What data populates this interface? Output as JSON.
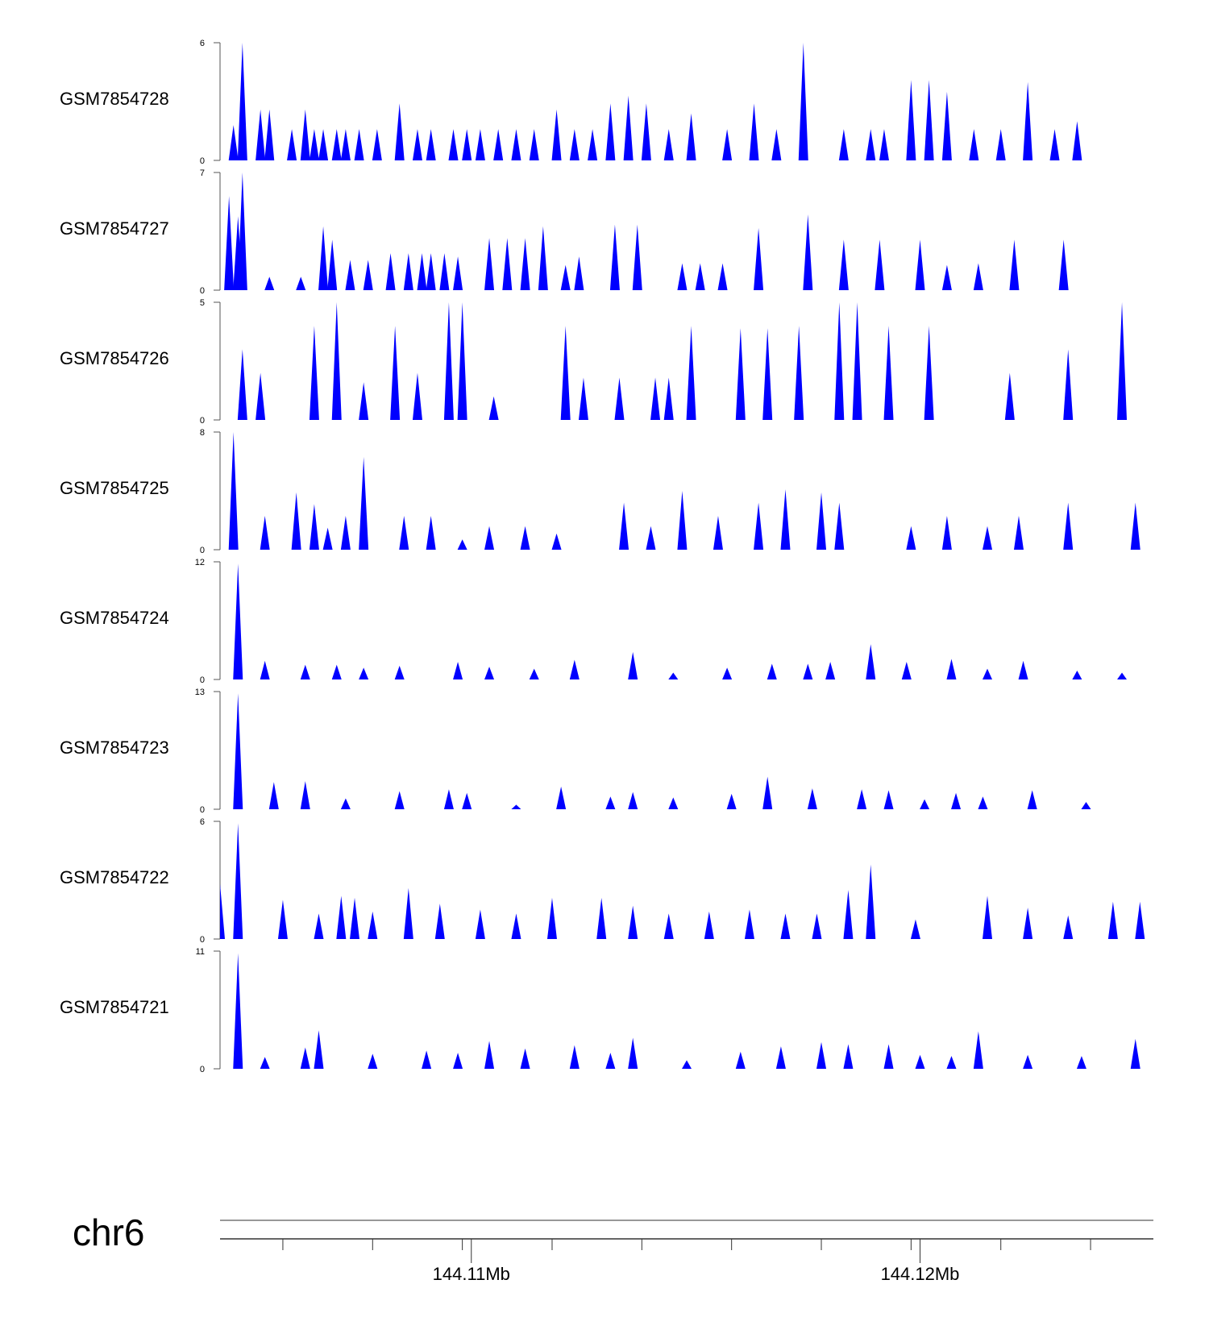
{
  "chart_data": {
    "type": "area",
    "color": "#0000ff",
    "x_units": "Mb",
    "xlim": [
      144.1044,
      144.1252
    ],
    "chromosome": "chr6",
    "axis": {
      "major_ticks": [
        144.11,
        144.12
      ],
      "major_labels": [
        "144.11Mb",
        "144.12Mb"
      ],
      "minor_ticks": [
        144.1058,
        144.1078,
        144.1098,
        144.1118,
        144.1138,
        144.1158,
        144.1178,
        144.1198,
        144.1218,
        144.1238
      ]
    },
    "tracks": [
      {
        "name": "GSM7854728",
        "ymax": 6,
        "ymax_label": "6",
        "ymin_label": "0",
        "peaks": [
          [
            144.1047,
            1.8
          ],
          [
            144.1049,
            6.0
          ],
          [
            144.1053,
            2.6
          ],
          [
            144.1055,
            2.6
          ],
          [
            144.106,
            1.6
          ],
          [
            144.1063,
            2.6
          ],
          [
            144.1065,
            1.6
          ],
          [
            144.1067,
            1.6
          ],
          [
            144.107,
            1.6
          ],
          [
            144.1072,
            1.6
          ],
          [
            144.1075,
            1.6
          ],
          [
            144.1079,
            1.6
          ],
          [
            144.1084,
            2.9
          ],
          [
            144.1088,
            1.6
          ],
          [
            144.1091,
            1.6
          ],
          [
            144.1096,
            1.6
          ],
          [
            144.1099,
            1.6
          ],
          [
            144.1102,
            1.6
          ],
          [
            144.1106,
            1.6
          ],
          [
            144.111,
            1.6
          ],
          [
            144.1114,
            1.6
          ],
          [
            144.1119,
            2.6
          ],
          [
            144.1123,
            1.6
          ],
          [
            144.1127,
            1.6
          ],
          [
            144.1131,
            2.9
          ],
          [
            144.1135,
            3.3
          ],
          [
            144.1139,
            2.9
          ],
          [
            144.1144,
            1.6
          ],
          [
            144.1149,
            2.4
          ],
          [
            144.1157,
            1.6
          ],
          [
            144.1163,
            2.9
          ],
          [
            144.1168,
            1.6
          ],
          [
            144.1174,
            6.0
          ],
          [
            144.1183,
            1.6
          ],
          [
            144.1189,
            1.6
          ],
          [
            144.1192,
            1.6
          ],
          [
            144.1198,
            4.1
          ],
          [
            144.1202,
            4.1
          ],
          [
            144.1206,
            3.5
          ],
          [
            144.1212,
            1.6
          ],
          [
            144.1218,
            1.6
          ],
          [
            144.1224,
            4.0
          ],
          [
            144.123,
            1.6
          ],
          [
            144.1235,
            2.0
          ]
        ]
      },
      {
        "name": "GSM7854727",
        "ymax": 7,
        "ymax_label": "7",
        "ymin_label": "0",
        "peaks": [
          [
            144.1046,
            5.6
          ],
          [
            144.1048,
            4.4
          ],
          [
            144.1049,
            7.0
          ],
          [
            144.1055,
            0.8
          ],
          [
            144.1062,
            0.8
          ],
          [
            144.1067,
            3.8
          ],
          [
            144.1069,
            3.0
          ],
          [
            144.1073,
            1.8
          ],
          [
            144.1077,
            1.8
          ],
          [
            144.1082,
            2.2
          ],
          [
            144.1086,
            2.2
          ],
          [
            144.1089,
            2.2
          ],
          [
            144.1091,
            2.2
          ],
          [
            144.1094,
            2.2
          ],
          [
            144.1097,
            2.0
          ],
          [
            144.1104,
            3.1
          ],
          [
            144.1108,
            3.1
          ],
          [
            144.1112,
            3.1
          ],
          [
            144.1116,
            3.8
          ],
          [
            144.1121,
            1.5
          ],
          [
            144.1124,
            2.0
          ],
          [
            144.1132,
            3.9
          ],
          [
            144.1137,
            3.9
          ],
          [
            144.1147,
            1.6
          ],
          [
            144.1151,
            1.6
          ],
          [
            144.1156,
            1.6
          ],
          [
            144.1164,
            3.7
          ],
          [
            144.1175,
            4.5
          ],
          [
            144.1183,
            3.0
          ],
          [
            144.1191,
            3.0
          ],
          [
            144.12,
            3.0
          ],
          [
            144.1206,
            1.5
          ],
          [
            144.1213,
            1.6
          ],
          [
            144.1221,
            3.0
          ],
          [
            144.1232,
            3.0
          ]
        ]
      },
      {
        "name": "GSM7854726",
        "ymax": 5,
        "ymax_label": "5",
        "ymin_label": "0",
        "peaks": [
          [
            144.1049,
            3.0
          ],
          [
            144.1053,
            2.0
          ],
          [
            144.1065,
            4.0
          ],
          [
            144.107,
            5.0
          ],
          [
            144.1076,
            1.6
          ],
          [
            144.1083,
            4.0
          ],
          [
            144.1088,
            2.0
          ],
          [
            144.1095,
            5.0
          ],
          [
            144.1098,
            5.0
          ],
          [
            144.1105,
            1.0
          ],
          [
            144.1121,
            4.0
          ],
          [
            144.1125,
            1.8
          ],
          [
            144.1133,
            1.8
          ],
          [
            144.1141,
            1.8
          ],
          [
            144.1144,
            1.8
          ],
          [
            144.1149,
            4.0
          ],
          [
            144.116,
            3.9
          ],
          [
            144.1166,
            3.9
          ],
          [
            144.1173,
            4.0
          ],
          [
            144.1182,
            5.0
          ],
          [
            144.1186,
            5.0
          ],
          [
            144.1193,
            4.0
          ],
          [
            144.1202,
            4.0
          ],
          [
            144.122,
            2.0
          ],
          [
            144.1233,
            3.0
          ],
          [
            144.1245,
            5.0
          ]
        ]
      },
      {
        "name": "GSM7854725",
        "ymax": 8,
        "ymax_label": "8",
        "ymin_label": "0",
        "peaks": [
          [
            144.1047,
            8.0
          ],
          [
            144.1054,
            2.3
          ],
          [
            144.1061,
            3.9
          ],
          [
            144.1065,
            3.1
          ],
          [
            144.1068,
            1.5
          ],
          [
            144.1072,
            2.3
          ],
          [
            144.1076,
            6.3
          ],
          [
            144.1085,
            2.3
          ],
          [
            144.1091,
            2.3
          ],
          [
            144.1098,
            0.7
          ],
          [
            144.1104,
            1.6
          ],
          [
            144.1112,
            1.6
          ],
          [
            144.1119,
            1.1
          ],
          [
            144.1134,
            3.2
          ],
          [
            144.114,
            1.6
          ],
          [
            144.1147,
            4.0
          ],
          [
            144.1155,
            2.3
          ],
          [
            144.1164,
            3.2
          ],
          [
            144.117,
            4.1
          ],
          [
            144.1178,
            3.9
          ],
          [
            144.1182,
            3.2
          ],
          [
            144.1198,
            1.6
          ],
          [
            144.1206,
            2.3
          ],
          [
            144.1215,
            1.6
          ],
          [
            144.1222,
            2.3
          ],
          [
            144.1233,
            3.2
          ],
          [
            144.1248,
            3.2
          ]
        ]
      },
      {
        "name": "GSM7854724",
        "ymax": 12,
        "ymax_label": "12",
        "ymin_label": "0",
        "peaks": [
          [
            144.1048,
            11.8
          ],
          [
            144.1054,
            1.9
          ],
          [
            144.1063,
            1.5
          ],
          [
            144.107,
            1.5
          ],
          [
            144.1076,
            1.2
          ],
          [
            144.1084,
            1.4
          ],
          [
            144.1097,
            1.8
          ],
          [
            144.1104,
            1.3
          ],
          [
            144.1114,
            1.1
          ],
          [
            144.1123,
            2.0
          ],
          [
            144.1136,
            2.8
          ],
          [
            144.1145,
            0.7
          ],
          [
            144.1157,
            1.2
          ],
          [
            144.1167,
            1.6
          ],
          [
            144.1175,
            1.6
          ],
          [
            144.118,
            1.8
          ],
          [
            144.1189,
            3.6
          ],
          [
            144.1197,
            1.8
          ],
          [
            144.1207,
            2.1
          ],
          [
            144.1215,
            1.1
          ],
          [
            144.1223,
            1.9
          ],
          [
            144.1235,
            0.9
          ],
          [
            144.1245,
            0.7
          ]
        ]
      },
      {
        "name": "GSM7854723",
        "ymax": 13,
        "ymax_label": "13",
        "ymin_label": "0",
        "peaks": [
          [
            144.1048,
            12.8
          ],
          [
            144.1056,
            3.0
          ],
          [
            144.1063,
            3.1
          ],
          [
            144.1072,
            1.2
          ],
          [
            144.1084,
            2.0
          ],
          [
            144.1095,
            2.2
          ],
          [
            144.1099,
            1.8
          ],
          [
            144.111,
            0.5
          ],
          [
            144.112,
            2.5
          ],
          [
            144.1131,
            1.4
          ],
          [
            144.1136,
            1.9
          ],
          [
            144.1145,
            1.3
          ],
          [
            144.1158,
            1.7
          ],
          [
            144.1166,
            3.6
          ],
          [
            144.1176,
            2.3
          ],
          [
            144.1187,
            2.2
          ],
          [
            144.1193,
            2.1
          ],
          [
            144.1201,
            1.1
          ],
          [
            144.1208,
            1.8
          ],
          [
            144.1214,
            1.4
          ],
          [
            144.1225,
            2.1
          ],
          [
            144.1237,
            0.8
          ]
        ]
      },
      {
        "name": "GSM7854722",
        "ymax": 6,
        "ymax_label": "6",
        "ymin_label": "0",
        "peaks": [
          [
            144.1044,
            2.8
          ],
          [
            144.1048,
            5.9
          ],
          [
            144.1058,
            2.0
          ],
          [
            144.1066,
            1.3
          ],
          [
            144.1071,
            2.2
          ],
          [
            144.1074,
            2.1
          ],
          [
            144.1078,
            1.4
          ],
          [
            144.1086,
            2.6
          ],
          [
            144.1093,
            1.8
          ],
          [
            144.1102,
            1.5
          ],
          [
            144.111,
            1.3
          ],
          [
            144.1118,
            2.1
          ],
          [
            144.1129,
            2.1
          ],
          [
            144.1136,
            1.7
          ],
          [
            144.1144,
            1.3
          ],
          [
            144.1153,
            1.4
          ],
          [
            144.1162,
            1.5
          ],
          [
            144.117,
            1.3
          ],
          [
            144.1177,
            1.3
          ],
          [
            144.1184,
            2.5
          ],
          [
            144.1189,
            3.8
          ],
          [
            144.1199,
            1.0
          ],
          [
            144.1215,
            2.2
          ],
          [
            144.1224,
            1.6
          ],
          [
            144.1233,
            1.2
          ],
          [
            144.1243,
            1.9
          ],
          [
            144.1249,
            1.9
          ]
        ]
      },
      {
        "name": "GSM7854721",
        "ymax": 11,
        "ymax_label": "11",
        "ymin_label": "0",
        "peaks": [
          [
            144.1048,
            10.8
          ],
          [
            144.1054,
            1.1
          ],
          [
            144.1063,
            2.0
          ],
          [
            144.1066,
            3.6
          ],
          [
            144.1078,
            1.4
          ],
          [
            144.109,
            1.7
          ],
          [
            144.1097,
            1.5
          ],
          [
            144.1104,
            2.6
          ],
          [
            144.1112,
            1.9
          ],
          [
            144.1123,
            2.2
          ],
          [
            144.1131,
            1.5
          ],
          [
            144.1136,
            2.9
          ],
          [
            144.1148,
            0.8
          ],
          [
            144.116,
            1.6
          ],
          [
            144.1169,
            2.1
          ],
          [
            144.1178,
            2.5
          ],
          [
            144.1184,
            2.3
          ],
          [
            144.1193,
            2.3
          ],
          [
            144.12,
            1.3
          ],
          [
            144.1207,
            1.2
          ],
          [
            144.1213,
            3.5
          ],
          [
            144.1224,
            1.3
          ],
          [
            144.1236,
            1.2
          ],
          [
            144.1248,
            2.8
          ]
        ]
      }
    ]
  }
}
